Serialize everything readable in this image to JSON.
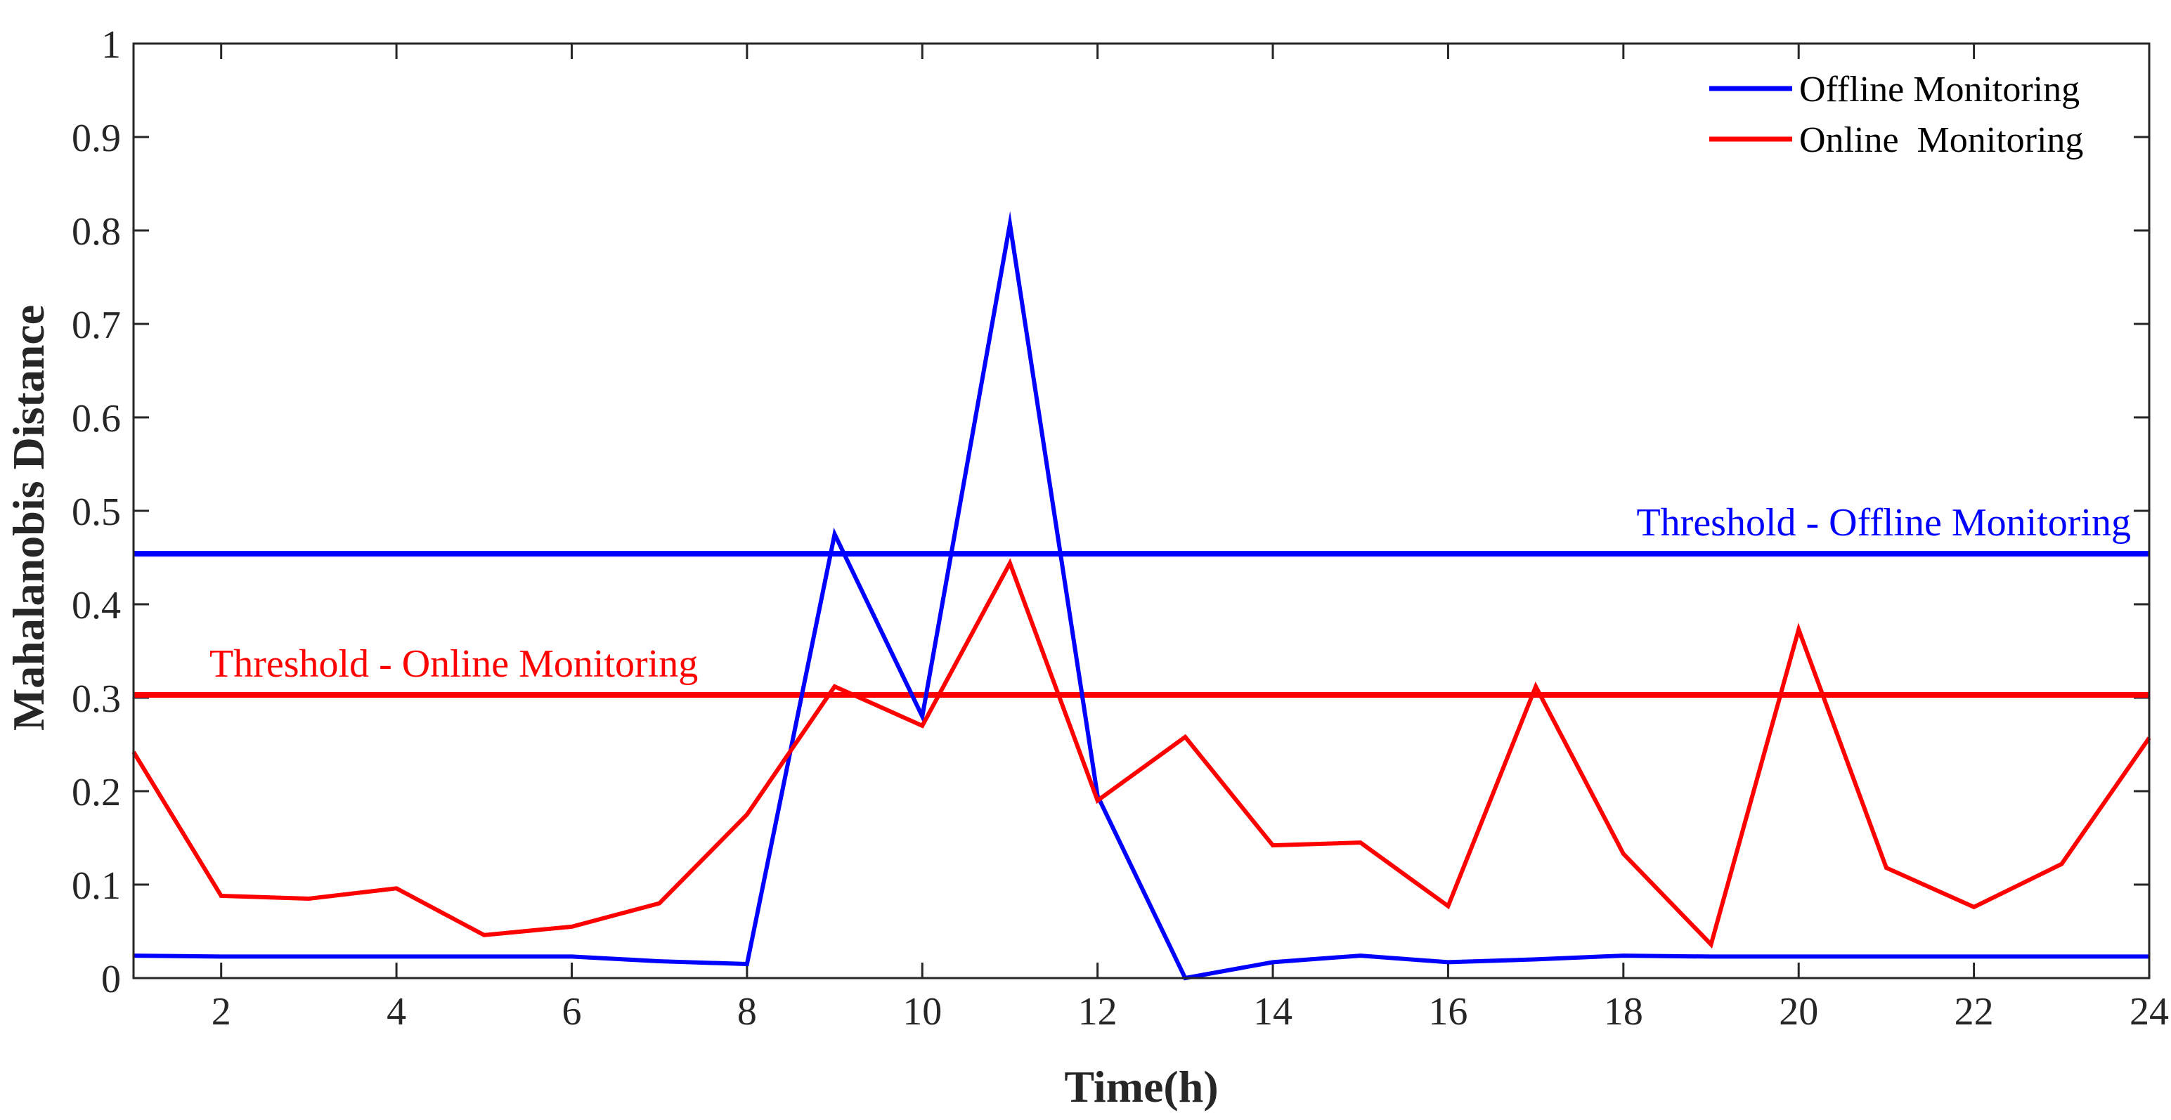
{
  "chart_data": {
    "type": "line",
    "title": "",
    "xlabel": "Time(h)",
    "ylabel": "Mahalanobis Distance",
    "xlim": [
      1,
      24
    ],
    "ylim": [
      0,
      1
    ],
    "xticks": [
      2,
      4,
      6,
      8,
      10,
      12,
      14,
      16,
      18,
      20,
      22,
      24
    ],
    "yticks": [
      0,
      0.1,
      0.2,
      0.3,
      0.4,
      0.5,
      0.6,
      0.7,
      0.8,
      0.9,
      1
    ],
    "ytick_labels": [
      "0",
      "0.1",
      "0.2",
      "0.3",
      "0.4",
      "0.5",
      "0.6",
      "0.7",
      "0.8",
      "0.9",
      "1"
    ],
    "grid": false,
    "legend_position": "top-right",
    "x": [
      1,
      2,
      3,
      4,
      5,
      6,
      7,
      8,
      9,
      10,
      11,
      12,
      13,
      14,
      15,
      16,
      17,
      18,
      19,
      20,
      21,
      22,
      23,
      24
    ],
    "series": [
      {
        "name": "Offline Monitoring",
        "color": "#0000ff",
        "values": [
          0.024,
          0.023,
          0.023,
          0.023,
          0.023,
          0.023,
          0.018,
          0.015,
          0.475,
          0.28,
          0.807,
          0.195,
          0.0,
          0.017,
          0.024,
          0.017,
          0.02,
          0.024,
          0.023,
          0.023,
          0.023,
          0.023,
          0.023,
          0.023
        ]
      },
      {
        "name": "Online  Monitoring",
        "color": "#ff0000",
        "values": [
          0.242,
          0.088,
          0.085,
          0.096,
          0.046,
          0.055,
          0.08,
          0.175,
          0.312,
          0.27,
          0.444,
          0.19,
          0.258,
          0.142,
          0.145,
          0.077,
          0.312,
          0.133,
          0.036,
          0.373,
          0.118,
          0.076,
          0.122,
          0.257
        ]
      }
    ],
    "thresholds": [
      {
        "label": "Threshold - Offline Monitoring",
        "value": 0.454,
        "color": "#0000ff"
      },
      {
        "label": "Threshold - Online Monitoring",
        "value": 0.303,
        "color": "#ff0000"
      }
    ]
  }
}
